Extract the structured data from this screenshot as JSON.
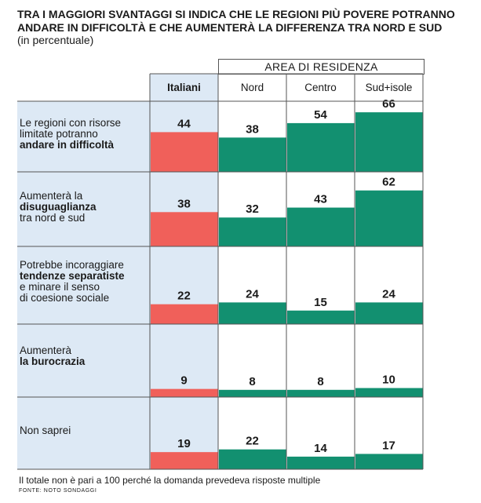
{
  "title_line1": "TRA I MAGGIORI SVANTAGGI SI INDICA CHE LE REGIONI PIÙ POVERE POTRANNO",
  "title_line2": "ANDARE IN DIFFICOLTÀ E CHE AUMENTERÀ LA DIFFERENZA TRA NORD E SUD",
  "subtitle": "(in percentuale)",
  "group_header": "AREA DI RESIDENZA",
  "footnote": "Il totale non è pari a 100 perché la domanda prevedeva risposte multiple",
  "source": "FONTE: NOTO SONDAGGI",
  "row_labels": [
    {
      "plain1": "Le regioni con risorse",
      "plain2": "limitate potranno",
      "bold": "andare in difficoltà",
      "plain3": ""
    },
    {
      "plain1": "Aumenterà la",
      "plain2": "",
      "bold": "disuguaglianza",
      "plain3": "tra nord e sud"
    },
    {
      "plain1": "Potrebbe incoraggiare",
      "plain2": "",
      "bold": "tendenze separatiste",
      "plain3": "e minare il senso"
    },
    {
      "plain1": "Aumenterà",
      "plain2": "",
      "bold": "la burocrazia",
      "plain3": ""
    },
    {
      "plain1": "Non saprei",
      "plain2": "",
      "bold": "",
      "plain3": ""
    }
  ],
  "row3_extra": "di coesione sociale",
  "colors": {
    "italiani_bar": "#f0605a",
    "area_bar": "#129070",
    "italiani_bg": "#dde9f5",
    "grid": "#555555"
  },
  "chart_data": {
    "type": "table",
    "columns": [
      "Italiani",
      "Nord",
      "Centro",
      "Sud+isole"
    ],
    "rows": [
      "Le regioni con risorse limitate potranno andare in difficoltà",
      "Aumenterà la disuguaglianza tra nord e sud",
      "Potrebbe incoraggiare tendenze separatiste e minare il senso di coesione sociale",
      "Aumenterà la burocrazia",
      "Non saprei"
    ],
    "series": [
      {
        "name": "Italiani",
        "values": [
          44,
          38,
          22,
          9,
          19
        ]
      },
      {
        "name": "Nord",
        "values": [
          38,
          32,
          24,
          8,
          22
        ]
      },
      {
        "name": "Centro",
        "values": [
          54,
          43,
          15,
          8,
          14
        ]
      },
      {
        "name": "Sud+isole",
        "values": [
          66,
          62,
          24,
          10,
          17
        ]
      }
    ],
    "title": "TRA I MAGGIORI SVANTAGGI SI INDICA CHE LE REGIONI PIÙ POVERE POTRANNO ANDARE IN DIFFICOLTÀ E CHE AUMENTERÀ LA DIFFERENZA TRA NORD E SUD",
    "subtitle": "(in percentuale)",
    "ylim": [
      0,
      100
    ]
  }
}
